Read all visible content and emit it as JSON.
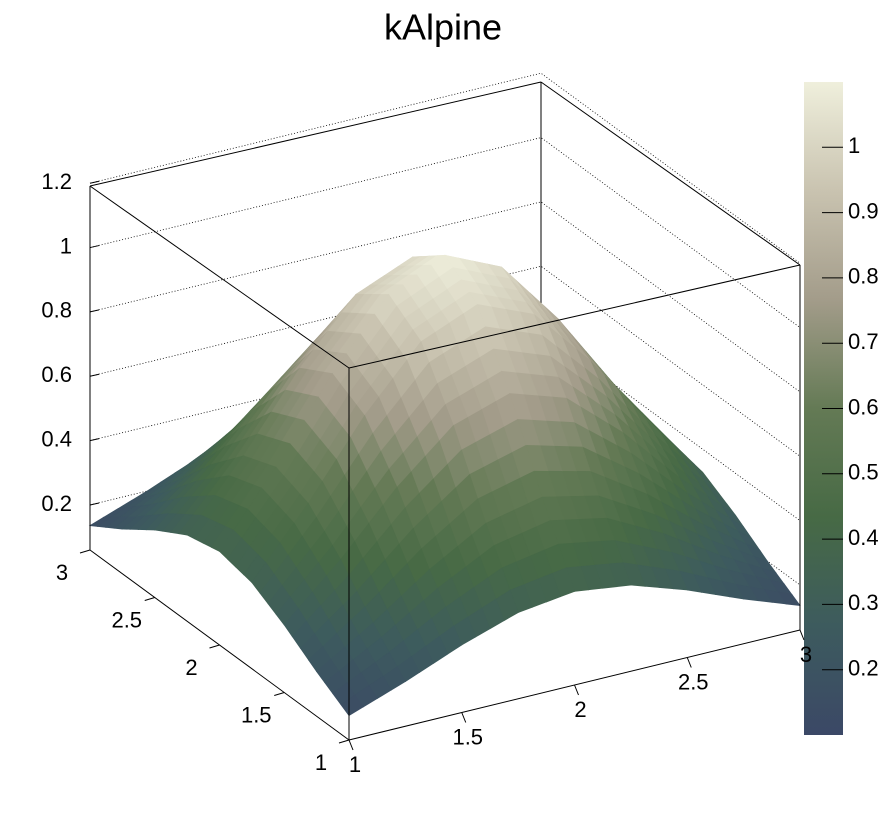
{
  "chart_data": {
    "type": "surface",
    "title": "kAlpine",
    "x": [
      1,
      1.25,
      1.5,
      1.75,
      2,
      2.25,
      2.5,
      2.75,
      3
    ],
    "y": [
      1,
      1.25,
      1.5,
      1.75,
      2,
      2.25,
      2.5,
      2.75,
      3
    ],
    "z": [
      [
        0.136,
        0.199,
        0.27,
        0.328,
        0.351,
        0.328,
        0.27,
        0.199,
        0.136
      ],
      [
        0.199,
        0.307,
        0.43,
        0.531,
        0.57,
        0.531,
        0.43,
        0.307,
        0.199
      ],
      [
        0.27,
        0.43,
        0.612,
        0.761,
        0.818,
        0.761,
        0.612,
        0.43,
        0.27
      ],
      [
        0.328,
        0.531,
        0.761,
        0.948,
        1.021,
        0.948,
        0.761,
        0.531,
        0.328
      ],
      [
        0.351,
        0.57,
        0.818,
        1.021,
        1.1,
        1.021,
        0.818,
        0.57,
        0.351
      ],
      [
        0.328,
        0.531,
        0.761,
        0.948,
        1.021,
        0.948,
        0.761,
        0.531,
        0.328
      ],
      [
        0.27,
        0.43,
        0.612,
        0.761,
        0.818,
        0.761,
        0.612,
        0.43,
        0.27
      ],
      [
        0.199,
        0.307,
        0.43,
        0.531,
        0.57,
        0.531,
        0.43,
        0.307,
        0.199
      ],
      [
        0.136,
        0.199,
        0.27,
        0.328,
        0.351,
        0.328,
        0.27,
        0.199,
        0.136
      ]
    ],
    "xlim": [
      1,
      3
    ],
    "ylim": [
      1,
      3
    ],
    "zlim": [
      0.06,
      1.21
    ],
    "xticks": [
      1,
      1.5,
      2,
      2.5,
      3
    ],
    "yticks": [
      1,
      1.5,
      2,
      2.5,
      3
    ],
    "zticks": [
      0.2,
      0.4,
      0.6,
      0.8,
      1,
      1.2
    ],
    "grid": true,
    "palette": [
      "#3b4866",
      "#3d5b5e",
      "#476a45",
      "#647a55",
      "#a39c8a",
      "#c9c3b0",
      "#efefdc"
    ],
    "colorbar": {
      "range": [
        0.1,
        1.1
      ],
      "ticks": [
        0.2,
        0.3,
        0.4,
        0.5,
        0.6,
        0.7,
        0.8,
        0.9,
        1
      ]
    }
  }
}
